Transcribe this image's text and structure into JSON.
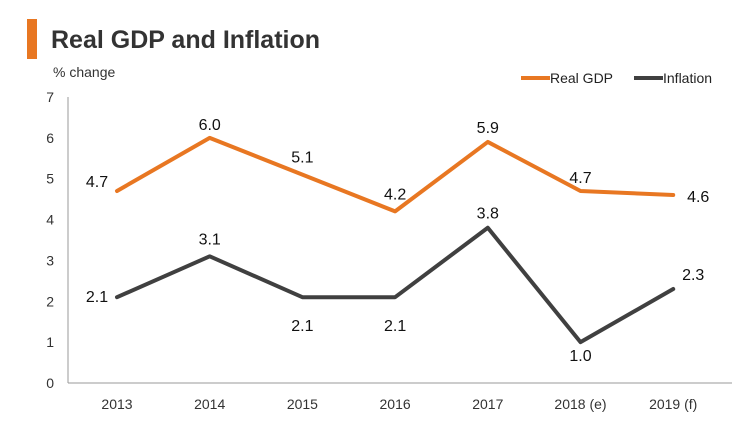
{
  "chart_data": {
    "type": "line",
    "title": "Real GDP and Inflation",
    "ylabel": "% change",
    "xlabel": "",
    "categories": [
      "2013",
      "2014",
      "2015",
      "2016",
      "2017",
      "2018 (e)",
      "2019 (f)"
    ],
    "ylim": [
      0,
      7
    ],
    "yticks": [
      0,
      1,
      2,
      3,
      4,
      5,
      6,
      7
    ],
    "grid": false,
    "legend_position": "top-right",
    "series": [
      {
        "name": "Real GDP",
        "color": "#e87722",
        "values": [
          4.7,
          6.0,
          5.1,
          4.2,
          5.9,
          4.7,
          4.6
        ],
        "labels": [
          "4.7",
          "6.0",
          "5.1",
          "4.2",
          "5.9",
          "4.7",
          "4.6"
        ]
      },
      {
        "name": "Inflation",
        "color": "#404040",
        "values": [
          2.1,
          3.1,
          2.1,
          2.1,
          3.8,
          1.0,
          2.3
        ],
        "labels": [
          "2.1",
          "3.1",
          "2.1",
          "2.1",
          "3.8",
          "1.0",
          "2.3"
        ]
      }
    ]
  }
}
